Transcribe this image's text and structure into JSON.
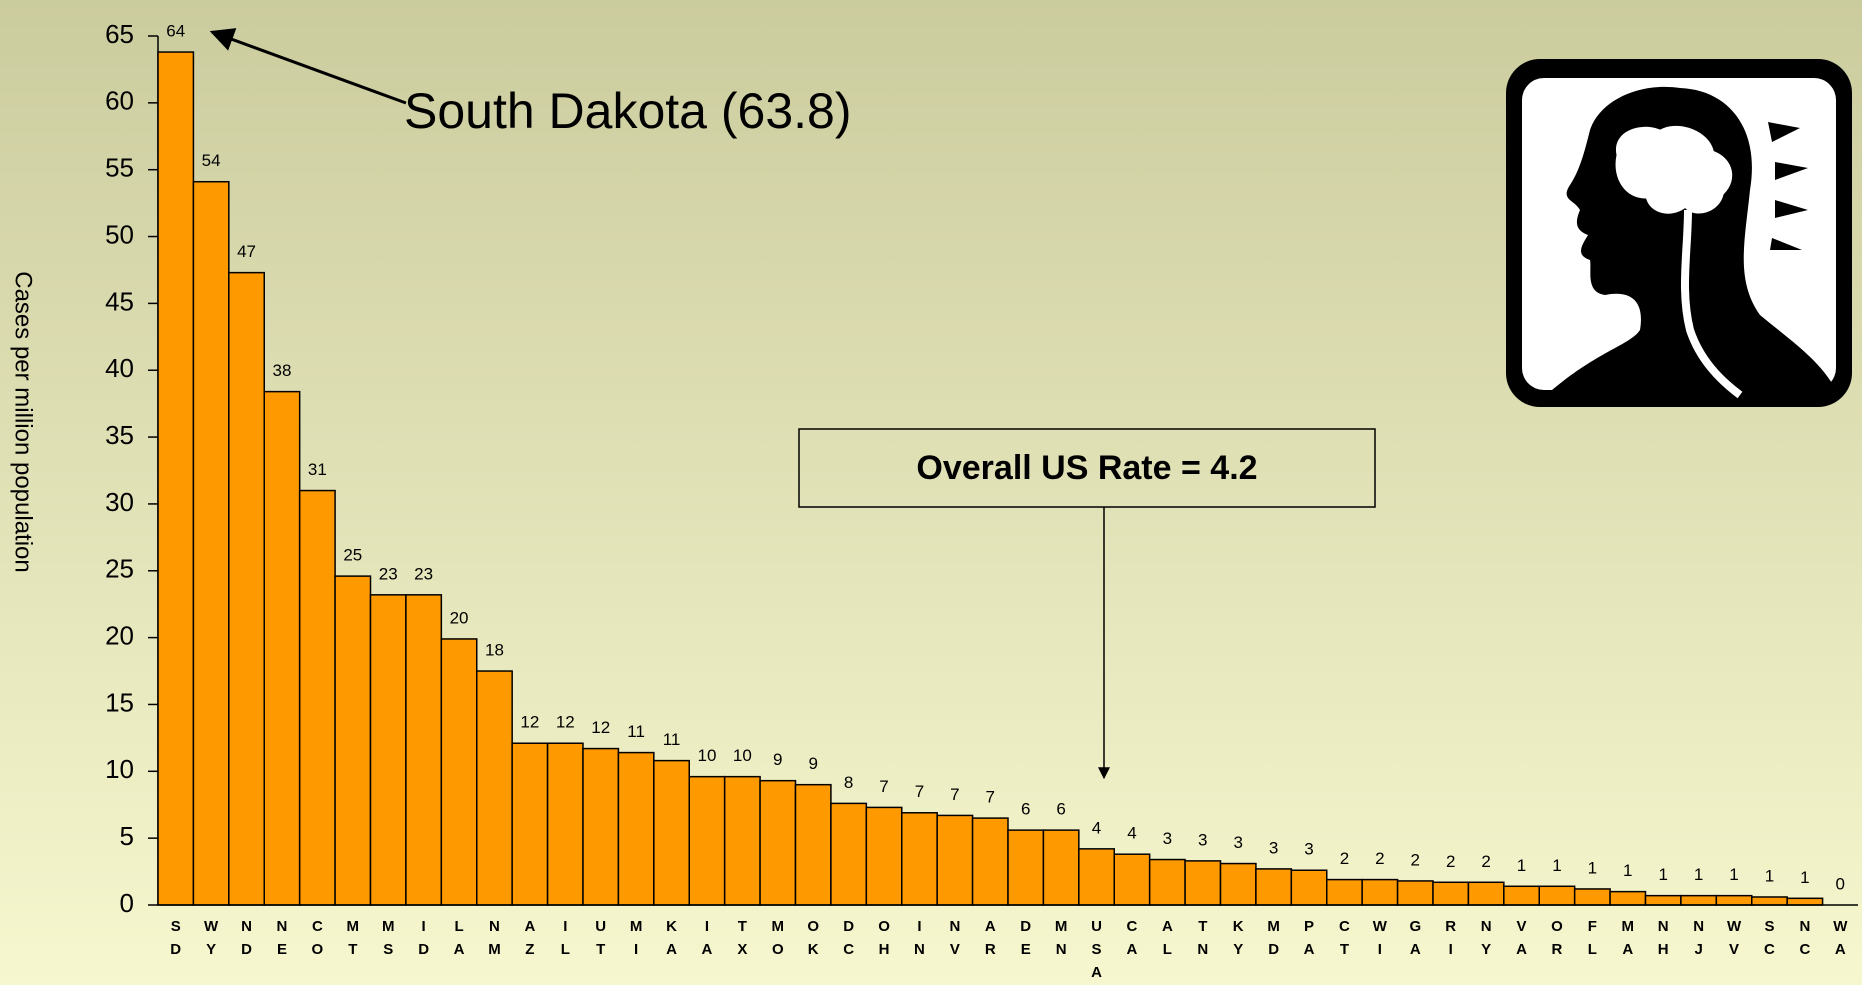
{
  "chart_data": {
    "type": "bar",
    "y_label": "Cases per million population",
    "annotations": [
      "South Dakota (63.8)",
      "Overall US Rate = 4.2"
    ],
    "categories": [
      "SD",
      "WY",
      "ND",
      "NE",
      "CO",
      "MT",
      "MS",
      "ID",
      "LA",
      "NM",
      "AZ",
      "IL",
      "UT",
      "MI",
      "KA",
      "IA",
      "TX",
      "MO",
      "OK",
      "DC",
      "OH",
      "IN",
      "NV",
      "AR",
      "DE",
      "MN",
      "USA",
      "CA",
      "AL",
      "TN",
      "KY",
      "MD",
      "PA",
      "CT",
      "WI",
      "GA",
      "RI",
      "NY",
      "VA",
      "OR",
      "FL",
      "MA",
      "NH",
      "NJ",
      "WV",
      "SC",
      "NC",
      "WA"
    ],
    "values": [
      63.8,
      54.1,
      47.3,
      38.4,
      31.0,
      24.6,
      23.2,
      23.2,
      19.9,
      17.5,
      12.1,
      12.1,
      11.7,
      11.4,
      10.8,
      9.6,
      9.6,
      9.3,
      9.0,
      7.6,
      7.3,
      6.9,
      6.7,
      6.5,
      5.6,
      5.6,
      4.2,
      3.8,
      3.4,
      3.3,
      3.1,
      2.7,
      2.6,
      1.9,
      1.9,
      1.8,
      1.7,
      1.7,
      1.4,
      1.4,
      1.2,
      1.0,
      0.7,
      0.7,
      0.7,
      0.6,
      0.5,
      0
    ],
    "value_labels": [
      "64",
      "54",
      "47",
      "38",
      "31",
      "25",
      "23",
      "23",
      "20",
      "18",
      "12",
      "12",
      "12",
      "11",
      "11",
      "10",
      "10",
      "9",
      "9",
      "8",
      "7",
      "7",
      "7",
      "7",
      "6",
      "6",
      "4",
      "4",
      "3",
      "3",
      "3",
      "3",
      "3",
      "2",
      "2",
      "2",
      "2",
      "2",
      "1",
      "1",
      "1",
      "1",
      "1",
      "1",
      "1",
      "1",
      "1",
      "0"
    ],
    "color": "#ff9900",
    "ylim": [
      0,
      65
    ],
    "yticks": [
      0,
      5,
      10,
      15,
      20,
      25,
      30,
      35,
      40,
      45,
      50,
      55,
      60,
      65
    ]
  }
}
